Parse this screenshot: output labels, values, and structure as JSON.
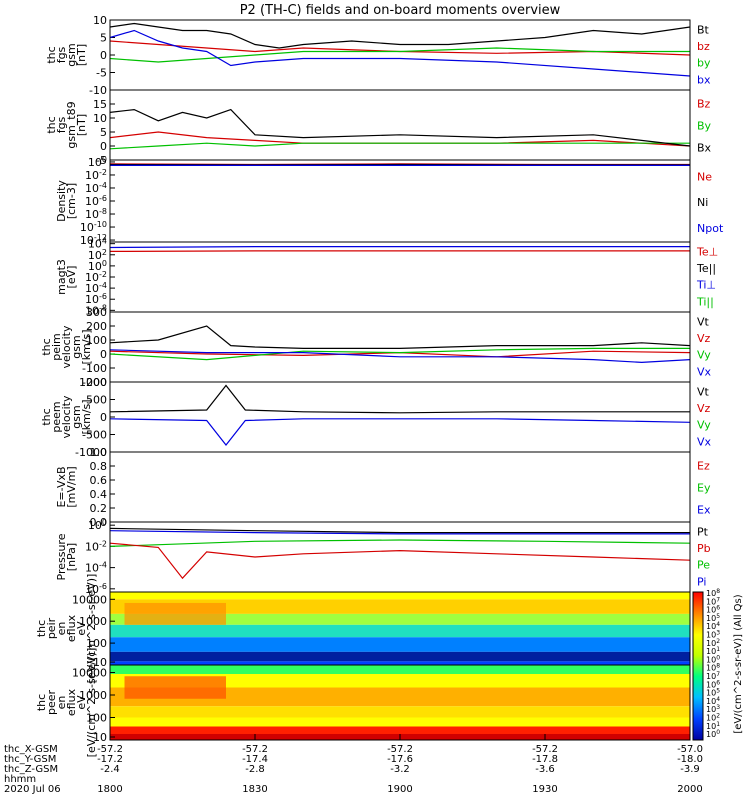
{
  "title": "P2 (TH-C) fields and on-board moments overview",
  "colors": {
    "black": "#000000",
    "red": "#d40000",
    "green": "#00c000",
    "blue": "#0000e0"
  },
  "colorbar": {
    "label": "[eV/(cm^2-s-sr-eV)] (All Qs)",
    "ticks": [
      "10^8",
      "10^7",
      "10^6",
      "10^5",
      "10^4",
      "10^3",
      "10^2",
      "10^1",
      "10^0",
      "10^8",
      "10^7",
      "10^6",
      "10^5",
      "10^4",
      "10^3",
      "10^2",
      "10^1",
      "10^0"
    ]
  },
  "x_axis": {
    "time_ticks": [
      "1800",
      "1830",
      "1900",
      "1930",
      "2000"
    ],
    "row_labels": [
      "thc_X-GSM",
      "thc_Y-GSM",
      "thc_Z-GSM",
      "hhmm",
      "2020 Jul 06"
    ],
    "ephemeris": {
      "thc_X-GSM": [
        "-57.2",
        "-57.2",
        "-57.2",
        "-57.2",
        "-57.0"
      ],
      "thc_Y-GSM": [
        "-17.2",
        "-17.4",
        "-17.6",
        "-17.8",
        "-18.0"
      ],
      "thc_Z-GSM": [
        "-2.4",
        "-2.8",
        "-3.2",
        "-3.6",
        "-3.9"
      ]
    }
  },
  "chart_data": [
    {
      "type": "line",
      "ylabel": "thc fgs gsm [nT]",
      "ylim": [
        -10,
        10
      ],
      "yticks": [
        "10",
        "5",
        "0",
        "-5",
        "-10"
      ],
      "legend": [
        "Bt",
        "bz",
        "by",
        "bx"
      ],
      "legend_colors": [
        "black",
        "red",
        "green",
        "blue"
      ],
      "series": [
        {
          "name": "Bt",
          "color": "black",
          "x": [
            0,
            5,
            10,
            15,
            20,
            25,
            30,
            35,
            40,
            50,
            60,
            70,
            80,
            90,
            100,
            110,
            120
          ],
          "values": [
            8,
            9,
            8,
            7,
            7,
            6,
            3,
            2,
            3,
            4,
            3,
            3,
            4,
            5,
            7,
            6,
            8
          ]
        },
        {
          "name": "bz",
          "color": "red",
          "x": [
            0,
            10,
            20,
            30,
            40,
            60,
            80,
            100,
            120
          ],
          "values": [
            4,
            3,
            2,
            1,
            2,
            1,
            0.5,
            1,
            0
          ]
        },
        {
          "name": "by",
          "color": "green",
          "x": [
            0,
            10,
            20,
            30,
            40,
            60,
            80,
            100,
            120
          ],
          "values": [
            -1,
            -2,
            -1,
            0,
            1,
            1,
            2,
            1,
            1
          ]
        },
        {
          "name": "bx",
          "color": "blue",
          "x": [
            0,
            5,
            10,
            15,
            20,
            25,
            30,
            40,
            60,
            80,
            100,
            120
          ],
          "values": [
            5,
            7,
            4,
            2,
            1,
            -3,
            -2,
            -1,
            -1,
            -2,
            -4,
            -6
          ]
        }
      ]
    },
    {
      "type": "line",
      "ylabel": "thc fgs gsm_t89 [nT]",
      "ylim": [
        -5,
        20
      ],
      "yticks": [
        "15",
        "10",
        "5",
        "0",
        "-5"
      ],
      "legend": [
        "Bz",
        "By",
        "Bx"
      ],
      "legend_colors": [
        "red",
        "green",
        "black"
      ],
      "series": [
        {
          "name": "Bz",
          "color": "red",
          "x": [
            0,
            10,
            20,
            30,
            40,
            60,
            80,
            100,
            120
          ],
          "values": [
            3,
            5,
            3,
            2,
            1,
            1,
            1,
            2,
            0
          ]
        },
        {
          "name": "By",
          "color": "green",
          "x": [
            0,
            10,
            20,
            30,
            40,
            60,
            80,
            100,
            120
          ],
          "values": [
            -1,
            0,
            1,
            0,
            1,
            1,
            1,
            1,
            1
          ]
        },
        {
          "name": "Bx",
          "color": "black",
          "x": [
            0,
            5,
            10,
            15,
            20,
            25,
            30,
            40,
            60,
            80,
            100,
            120
          ],
          "values": [
            12,
            13,
            9,
            12,
            10,
            13,
            4,
            3,
            4,
            3,
            4,
            0
          ]
        }
      ]
    },
    {
      "type": "line",
      "ylabel": "Density [cm-3]",
      "yscale": "log",
      "yticks": [
        "10^0",
        "10^-2",
        "10^-4",
        "10^-6",
        "10^-8",
        "10^-10",
        "10^-12"
      ],
      "legend": [
        "Ne",
        "Ni",
        "Npot"
      ],
      "legend_colors": [
        "red",
        "black",
        "blue"
      ],
      "series": [
        {
          "name": "Ne",
          "color": "red",
          "x": [
            0,
            30,
            60,
            90,
            120
          ],
          "values": [
            0.5,
            0.4,
            0.5,
            0.4,
            0.4
          ]
        },
        {
          "name": "Ni",
          "color": "black",
          "x": [
            0,
            30,
            60,
            90,
            120
          ],
          "values": [
            0.4,
            0.35,
            0.4,
            0.35,
            0.35
          ]
        },
        {
          "name": "Npot",
          "color": "blue",
          "x": [
            0,
            30,
            60,
            90,
            120
          ],
          "values": [
            0.3,
            0.3,
            0.3,
            0.3,
            0.3
          ]
        }
      ]
    },
    {
      "type": "line",
      "ylabel": "magt3 [eV]",
      "yscale": "log",
      "yticks": [
        "10^4",
        "10^2",
        "10^0",
        "10^-2",
        "10^-4",
        "10^-6",
        "10^-8"
      ],
      "legend": [
        "Te⊥",
        "Te||",
        "Ti⊥",
        "Ti||"
      ],
      "legend_colors": [
        "red",
        "black",
        "blue",
        "green"
      ],
      "series": [
        {
          "name": "Ti",
          "color": "blue",
          "x": [
            0,
            30,
            60,
            90,
            120
          ],
          "values": [
            2000,
            3000,
            3000,
            3000,
            3000
          ]
        },
        {
          "name": "Te",
          "color": "red",
          "x": [
            0,
            30,
            60,
            90,
            120
          ],
          "values": [
            400,
            500,
            500,
            500,
            500
          ]
        }
      ]
    },
    {
      "type": "line",
      "ylabel": "thc peim velocity gsm [km/s]",
      "ylim": [
        -200,
        300
      ],
      "yticks": [
        "300",
        "200",
        "100",
        "0",
        "-100",
        "-200"
      ],
      "legend": [
        "Vt",
        "Vz",
        "Vy",
        "Vx"
      ],
      "legend_colors": [
        "black",
        "red",
        "green",
        "blue"
      ],
      "series": [
        {
          "name": "Vt",
          "color": "black",
          "x": [
            0,
            10,
            20,
            25,
            30,
            40,
            60,
            80,
            100,
            110,
            120
          ],
          "values": [
            80,
            100,
            200,
            60,
            50,
            40,
            40,
            60,
            60,
            80,
            60
          ]
        },
        {
          "name": "Vz",
          "color": "red",
          "x": [
            0,
            20,
            40,
            60,
            80,
            100,
            120
          ],
          "values": [
            20,
            0,
            -10,
            10,
            -20,
            20,
            10
          ]
        },
        {
          "name": "Vy",
          "color": "green",
          "x": [
            0,
            20,
            40,
            60,
            80,
            100,
            120
          ],
          "values": [
            0,
            -40,
            20,
            10,
            30,
            40,
            40
          ]
        },
        {
          "name": "Vx",
          "color": "blue",
          "x": [
            0,
            20,
            40,
            60,
            80,
            100,
            110,
            120
          ],
          "values": [
            30,
            10,
            10,
            -20,
            -20,
            -40,
            -60,
            -40
          ]
        }
      ]
    },
    {
      "type": "line",
      "ylabel": "thc peem velocity gsm [km/s]",
      "ylim": [
        -1000,
        1000
      ],
      "yticks": [
        "1000",
        "500",
        "0",
        "-500",
        "-1000"
      ],
      "legend": [
        "Vt",
        "Vz",
        "Vy",
        "Vx"
      ],
      "legend_colors": [
        "black",
        "red",
        "green",
        "blue"
      ],
      "series": [
        {
          "name": "Vt",
          "color": "black",
          "x": [
            0,
            20,
            24,
            28,
            40,
            60,
            80,
            100,
            120
          ],
          "values": [
            150,
            200,
            900,
            200,
            150,
            120,
            150,
            150,
            150
          ]
        },
        {
          "name": "Vx",
          "color": "blue",
          "x": [
            0,
            20,
            24,
            28,
            40,
            60,
            80,
            100,
            120
          ],
          "values": [
            -50,
            -100,
            -800,
            -100,
            -50,
            -50,
            -50,
            -100,
            -150
          ]
        }
      ]
    },
    {
      "type": "line",
      "ylabel": "E=-VxB [mV/m]",
      "ylim": [
        0,
        1
      ],
      "yticks": [
        "1.0",
        "0.8",
        "0.6",
        "0.4",
        "0.2",
        "0.0"
      ],
      "legend": [
        "Ez",
        "Ey",
        "Ex"
      ],
      "legend_colors": [
        "red",
        "green",
        "blue"
      ],
      "series": []
    },
    {
      "type": "line",
      "ylabel": "Pressure [nPa]",
      "yscale": "log",
      "yticks": [
        "10^0",
        "10^-2",
        "10^-4",
        "10^-6"
      ],
      "legend": [
        "Pt",
        "Pb",
        "Pe",
        "Pi"
      ],
      "legend_colors": [
        "black",
        "red",
        "green",
        "blue"
      ],
      "series": [
        {
          "name": "Pt",
          "color": "black",
          "x": [
            0,
            30,
            60,
            90,
            120
          ],
          "values": [
            0.5,
            0.3,
            0.2,
            0.2,
            0.2
          ]
        },
        {
          "name": "Pi",
          "color": "blue",
          "x": [
            0,
            30,
            60,
            90,
            120
          ],
          "values": [
            0.3,
            0.2,
            0.15,
            0.15,
            0.15
          ]
        },
        {
          "name": "Pe",
          "color": "green",
          "x": [
            0,
            30,
            60,
            90,
            120
          ],
          "values": [
            0.01,
            0.03,
            0.04,
            0.03,
            0.02
          ]
        },
        {
          "name": "Pb",
          "color": "red",
          "x": [
            0,
            10,
            15,
            20,
            30,
            40,
            60,
            80,
            100,
            120
          ],
          "values": [
            0.02,
            0.008,
            1e-05,
            0.003,
            0.001,
            0.002,
            0.004,
            0.002,
            0.001,
            0.0005
          ]
        }
      ]
    },
    {
      "type": "heatmap",
      "ylabel": "thc peir en eflux eV [eV/(cm^2-s-sr-eV)]",
      "yscale": "log",
      "yticks": [
        "10000",
        "1000",
        "100",
        "10"
      ]
    },
    {
      "type": "heatmap",
      "ylabel": "thc peer en eflux eV [eV/(cm^2-s-sr-eV)]",
      "yscale": "log",
      "yticks": [
        "10000",
        "1000",
        "100",
        "10"
      ]
    }
  ]
}
